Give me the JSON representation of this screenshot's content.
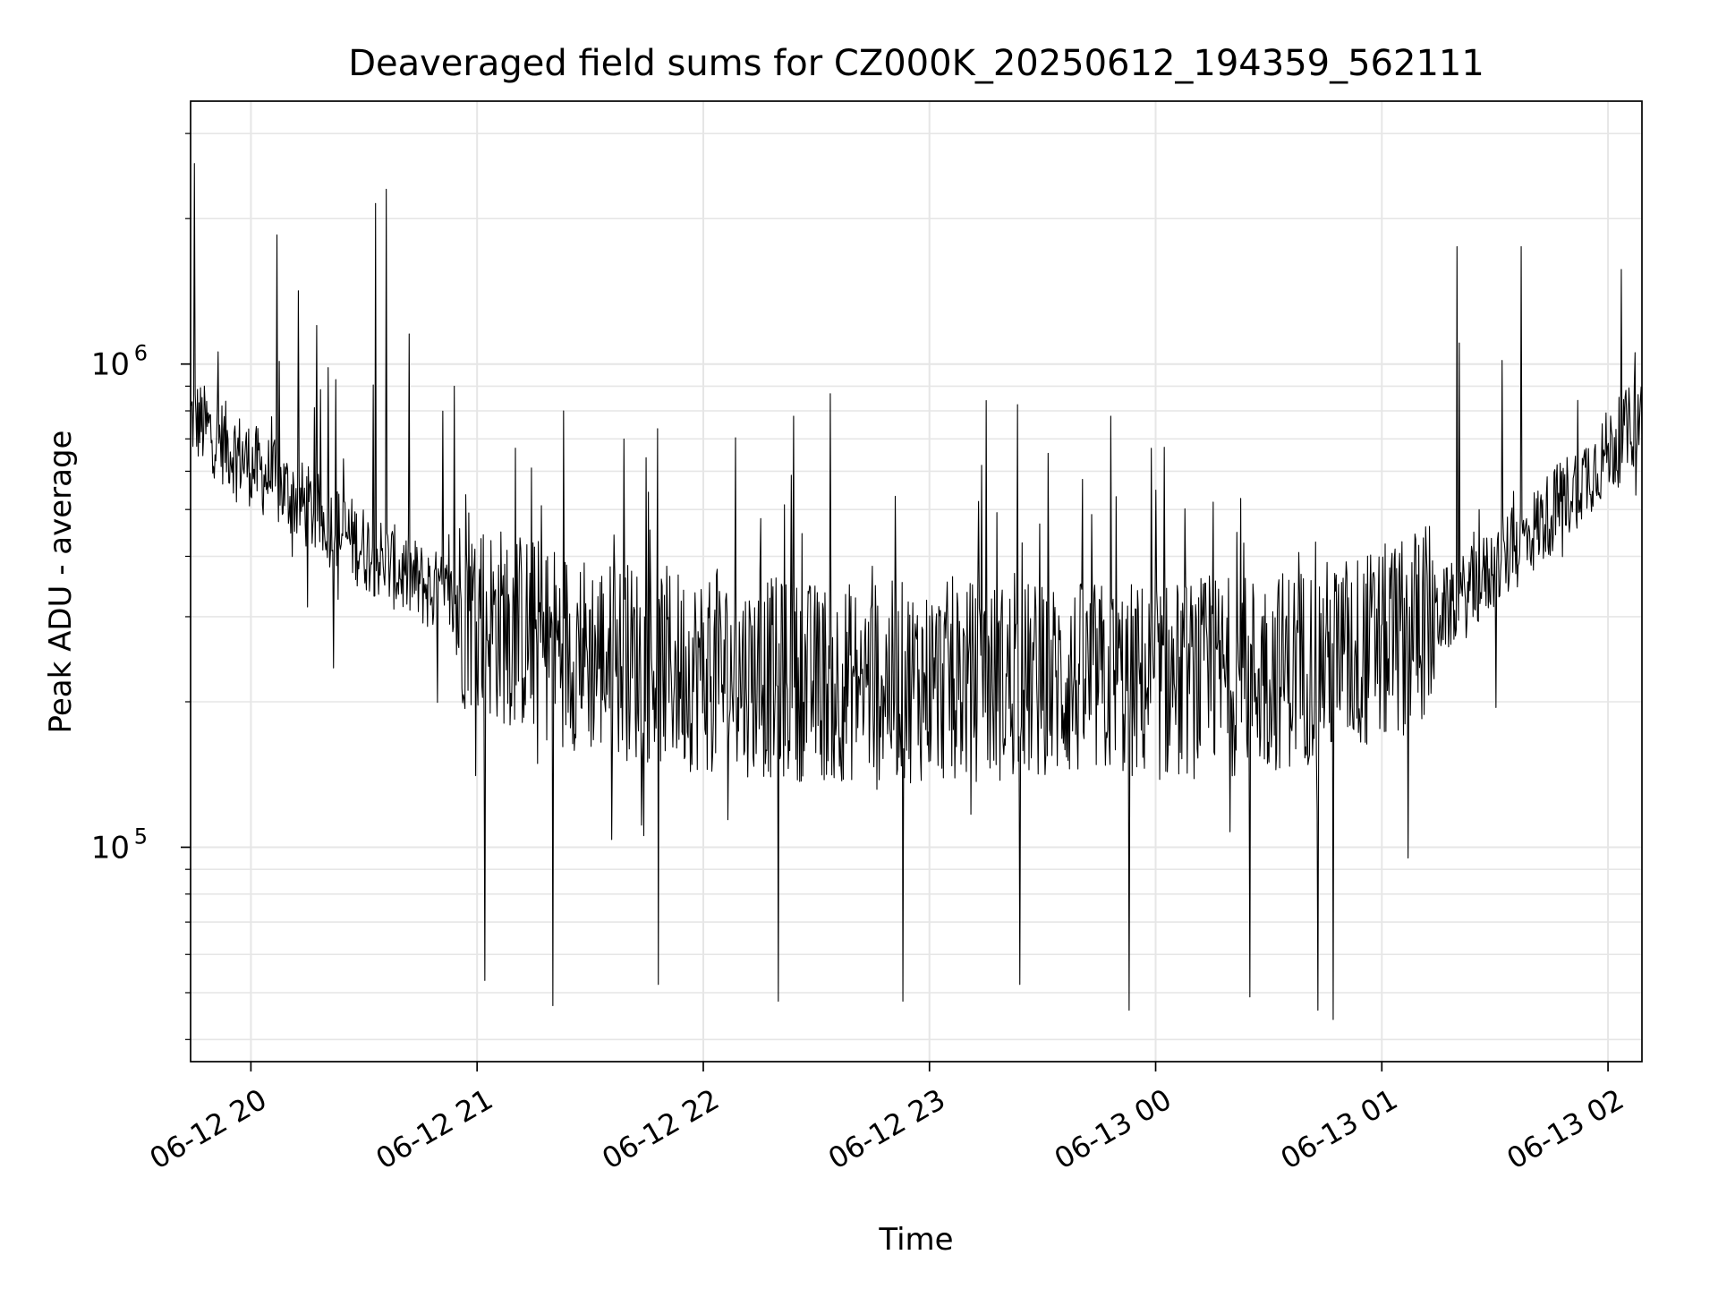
{
  "chart_data": {
    "type": "line",
    "title": "Deaveraged field sums for CZ000K_20250612_194359_562111",
    "xlabel": "Time",
    "ylabel": "Peak ADU - average",
    "yscale": "log",
    "ylim": [
      36000,
      3500000
    ],
    "xlim": [
      "2025-06-12 19:44",
      "2025-06-13 02:09"
    ],
    "grid": true,
    "x_ticks": [
      {
        "value": "2025-06-12 20:00",
        "label": "06-12 20"
      },
      {
        "value": "2025-06-12 21:00",
        "label": "06-12 21"
      },
      {
        "value": "2025-06-12 22:00",
        "label": "06-12 22"
      },
      {
        "value": "2025-06-12 23:00",
        "label": "06-12 23"
      },
      {
        "value": "2025-06-13 00:00",
        "label": "06-13 00"
      },
      {
        "value": "2025-06-13 01:00",
        "label": "06-13 01"
      },
      {
        "value": "2025-06-13 02:00",
        "label": "06-13 02"
      }
    ],
    "y_ticks": [
      {
        "value": 100000,
        "label": "10",
        "exp": "5"
      },
      {
        "value": 1000000,
        "label": "10",
        "exp": "6"
      }
    ],
    "series": [
      {
        "color": "#000000",
        "baseline": {
          "x": [
            "2025-06-12 19:44",
            "2025-06-12 20:00",
            "2025-06-12 20:20",
            "2025-06-12 20:40",
            "2025-06-12 21:00",
            "2025-06-12 21:30",
            "2025-06-12 22:00",
            "2025-06-12 22:30",
            "2025-06-12 23:00",
            "2025-06-12 23:30",
            "2025-06-13 00:00",
            "2025-06-13 00:30",
            "2025-06-13 01:00",
            "2025-06-13 01:20",
            "2025-06-13 01:40",
            "2025-06-13 02:09"
          ],
          "y": [
            780000,
            620000,
            470000,
            370000,
            300000,
            250000,
            230000,
            220000,
            220000,
            220000,
            220000,
            230000,
            260000,
            320000,
            450000,
            780000
          ]
        },
        "spikes_up": [
          {
            "x": "2025-06-12 19:45",
            "y": 2600000
          },
          {
            "x": "2025-06-12 20:07",
            "y": 1850000
          },
          {
            "x": "2025-06-12 20:33",
            "y": 2150000
          },
          {
            "x": "2025-06-12 20:36",
            "y": 2300000
          },
          {
            "x": "2025-06-12 20:54",
            "y": 900000
          },
          {
            "x": "2025-06-12 21:23",
            "y": 800000
          },
          {
            "x": "2025-06-12 22:24",
            "y": 780000
          },
          {
            "x": "2025-06-12 23:15",
            "y": 840000
          },
          {
            "x": "2025-06-12 23:48",
            "y": 780000
          },
          {
            "x": "2025-06-13 01:20",
            "y": 1750000
          },
          {
            "x": "2025-06-13 01:37",
            "y": 1750000
          }
        ],
        "spikes_down": [
          {
            "x": "2025-06-12 20:22",
            "y": 235000
          },
          {
            "x": "2025-06-12 21:02",
            "y": 53000
          },
          {
            "x": "2025-06-12 21:20",
            "y": 47000
          },
          {
            "x": "2025-06-12 21:48",
            "y": 52000
          },
          {
            "x": "2025-06-12 22:20",
            "y": 48000
          },
          {
            "x": "2025-06-12 22:53",
            "y": 48000
          },
          {
            "x": "2025-06-12 23:24",
            "y": 52000
          },
          {
            "x": "2025-06-12 23:53",
            "y": 46000
          },
          {
            "x": "2025-06-13 00:25",
            "y": 49000
          },
          {
            "x": "2025-06-13 00:43",
            "y": 46000
          },
          {
            "x": "2025-06-13 00:47",
            "y": 44000
          },
          {
            "x": "2025-06-13 01:07",
            "y": 95000
          }
        ]
      }
    ]
  }
}
